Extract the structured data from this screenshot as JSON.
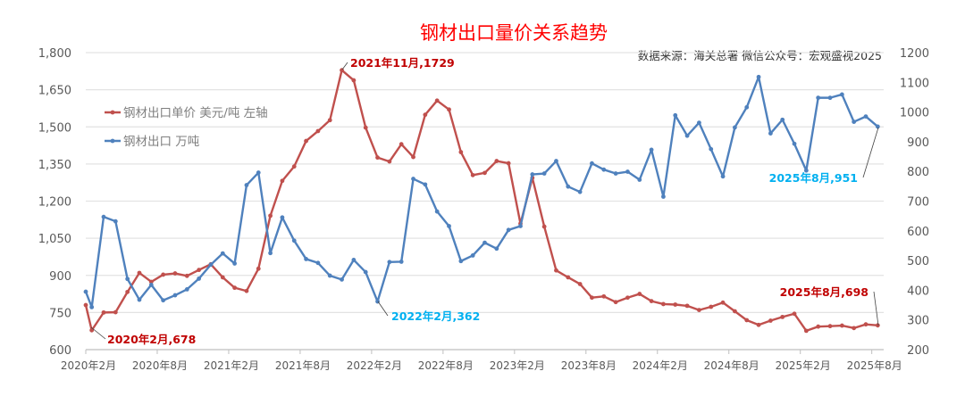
{
  "chart_data": {
    "type": "line",
    "title": "钢材出口量价关系趋势",
    "source_note": "数据来源：海关总署  微信公众号：宏观盛视2025",
    "x_tick_labels": [
      "2020年2月",
      "2020年8月",
      "2021年2月",
      "2021年8月",
      "2022年2月",
      "2022年8月",
      "2023年2月",
      "2023年8月",
      "2024年2月",
      "2024年8月",
      "2025年2月",
      "2025年8月"
    ],
    "x_start": "2020-02",
    "x_end": "2025-08",
    "y_left": {
      "range": [
        600,
        1800
      ],
      "ticks": [
        "600",
        "750",
        "900",
        "1,050",
        "1,200",
        "1,350",
        "1,500",
        "1,650",
        "1,800"
      ]
    },
    "y_right": {
      "range": [
        200,
        1200
      ],
      "ticks": [
        "200",
        "300",
        "400",
        "500",
        "600",
        "700",
        "800",
        "900",
        "1000",
        "1100",
        "1200"
      ]
    },
    "grid": true,
    "legend_position": "top-left",
    "series": [
      {
        "name": "钢材出口单价 美元/吨 左轴",
        "axis": "left",
        "color": "#C0504D",
        "lead_value": 780,
        "values": [
          678,
          750,
          751,
          833,
          910,
          874,
          903,
          908,
          898,
          922,
          945,
          892,
          850,
          837,
          927,
          1141,
          1282,
          1340,
          1443,
          1483,
          1527,
          1729,
          1688,
          1497,
          1376,
          1360,
          1430,
          1378,
          1549,
          1606,
          1570,
          1398,
          1305,
          1314,
          1362,
          1353,
          1109,
          1294,
          1097,
          920,
          892,
          865,
          810,
          815,
          792,
          810,
          825,
          796,
          784,
          782,
          777,
          760,
          773,
          790,
          755,
          719,
          700,
          717,
          732,
          745,
          676,
          693,
          695,
          697,
          687,
          702,
          698
        ]
      },
      {
        "name": "钢材出口 万吨",
        "axis": "right",
        "color": "#4F81BD",
        "lead_value": 395,
        "values": [
          343,
          647,
          632,
          438,
          368,
          418,
          366,
          383,
          403,
          439,
          486,
          524,
          490,
          754,
          796,
          525,
          645,
          567,
          505,
          492,
          449,
          436,
          502,
          461,
          362,
          495,
          496,
          775,
          756,
          665,
          616,
          498,
          517,
          560,
          540,
          603,
          616,
          790,
          793,
          835,
          749,
          731,
          827,
          806,
          793,
          799,
          772,
          873,
          715,
          989,
          920,
          964,
          875,
          783,
          948,
          1016,
          1118,
          928,
          974,
          893,
          803,
          1048,
          1048,
          1059,
          967,
          985,
          951
        ]
      }
    ],
    "annotations": [
      {
        "text": "2020年2月,678",
        "series": 0,
        "index": 0,
        "color": "#C00000"
      },
      {
        "text": "2021年11月,1729",
        "series": 0,
        "index": 21,
        "color": "#C00000"
      },
      {
        "text": "2022年2月,362",
        "series": 1,
        "index": 24,
        "color": "#00B0F0"
      },
      {
        "text": "2025年8月,951",
        "series": 1,
        "index": 66,
        "color": "#00B0F0"
      },
      {
        "text": "2025年8月,698",
        "series": 0,
        "index": 66,
        "color": "#C00000"
      }
    ]
  }
}
